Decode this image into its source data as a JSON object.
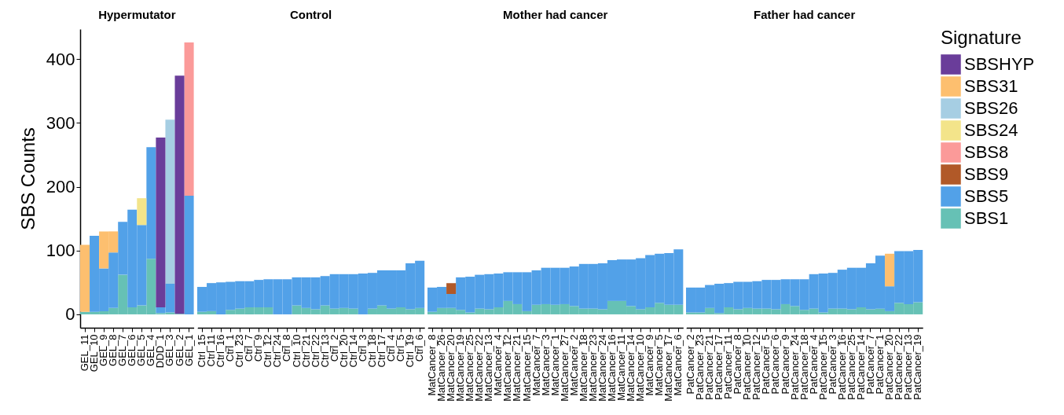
{
  "chart_data": [
    {
      "type": "bar",
      "title": "Hypermutator",
      "ylabel": "SBS Counts",
      "stacked": true,
      "legend": "right",
      "legend_title": "Signature",
      "ylim": [
        -21,
        447
      ],
      "yticks": [
        0,
        100,
        200,
        300,
        400
      ],
      "categories": [
        "GEL_11",
        "GEL_10",
        "GEL_9",
        "GEL_8",
        "GEL_7",
        "GEL_6",
        "GEL_5",
        "GEL_4",
        "DDD_1",
        "GEL_3",
        "GEL_2",
        "GEL_1"
      ],
      "series": [
        {
          "name": "SBS1",
          "color": "#66c1b5",
          "values": [
            4,
            4,
            5,
            10,
            62,
            11,
            14,
            87,
            2,
            3,
            1,
            0
          ]
        },
        {
          "name": "SBS5",
          "color": "#52a1e8",
          "values": [
            0,
            119,
            67,
            87,
            83,
            153,
            126,
            175,
            9,
            45,
            0,
            186
          ]
        },
        {
          "name": "SBS8",
          "color": "#fb9a99",
          "values": [
            0,
            0,
            0,
            0,
            0,
            0,
            0,
            0,
            0,
            0,
            0,
            240
          ]
        },
        {
          "name": "SBS24",
          "color": "#f3e48a",
          "values": [
            0,
            0,
            0,
            0,
            0,
            0,
            42,
            0,
            0,
            0,
            0,
            0
          ]
        },
        {
          "name": "SBS26",
          "color": "#a6cee3",
          "values": [
            0,
            0,
            0,
            0,
            0,
            0,
            0,
            0,
            0,
            257,
            0,
            0
          ]
        },
        {
          "name": "SBS31",
          "color": "#fdbf6f",
          "values": [
            105,
            0,
            58,
            33,
            0,
            0,
            0,
            0,
            0,
            0,
            0,
            0
          ]
        },
        {
          "name": "SBSHYP",
          "color": "#6a3d9a",
          "values": [
            0,
            0,
            0,
            0,
            0,
            0,
            0,
            0,
            266,
            0,
            373,
            0
          ]
        }
      ]
    },
    {
      "type": "bar",
      "title": "Control",
      "stacked": true,
      "ylim": [
        -21,
        447
      ],
      "tick_labels": "x",
      "categories": [
        "Ctrl_15",
        "Ctrl_11",
        "Ctrl_16",
        "Ctrl_1",
        "Ctrl_23",
        "Ctrl_7",
        "Ctrl_9",
        "Ctrl_12",
        "Ctrl_24",
        "Ctrl_8",
        "Ctrl_10",
        "Ctrl_21",
        "Ctrl_22",
        "Ctrl_13",
        "Ctrl_2",
        "Ctrl_20",
        "Ctrl_14",
        "Ctrl_3",
        "Ctrl_18",
        "Ctrl_17",
        "Ctrl_4",
        "Ctrl_5",
        "Ctrl_19",
        "Ctrl_6"
      ],
      "series": [
        {
          "name": "SBS1",
          "color": "#66c1b5",
          "values": [
            4,
            5,
            0,
            7,
            9,
            11,
            11,
            11,
            0,
            0,
            14,
            10,
            8,
            14,
            9,
            10,
            9,
            0,
            9,
            14,
            9,
            11,
            8,
            10
          ]
        },
        {
          "name": "SBS5",
          "color": "#52a1e8",
          "values": [
            39,
            44,
            50,
            44,
            43,
            41,
            43,
            44,
            55,
            55,
            44,
            48,
            50,
            46,
            54,
            53,
            54,
            64,
            56,
            55,
            60,
            58,
            72,
            74
          ]
        }
      ]
    },
    {
      "type": "bar",
      "title": "Mother had cancer",
      "stacked": true,
      "ylim": [
        -21,
        447
      ],
      "tick_labels": "x",
      "categories": [
        "MatCancer_8",
        "MatCancer_26",
        "MatCancer_20",
        "MatCancer_19",
        "MatCancer_25",
        "MatCancer_22",
        "MatCancer_13",
        "MatCancer_4",
        "MatCancer_12",
        "MatCancer_21",
        "MatCancer_15",
        "MatCancer_7",
        "MatCancer_3",
        "MatCancer_1",
        "MatCancer_27",
        "MatCancer_2",
        "MatCancer_18",
        "MatCancer_23",
        "MatCancer_24",
        "MatCancer_16",
        "MatCancer_11",
        "MatCancer_14",
        "MatCancer_10",
        "MatCancer_9",
        "MatCancer_5",
        "MatCancer_17",
        "MatCancer_6"
      ],
      "series": [
        {
          "name": "SBS1",
          "color": "#66c1b5",
          "values": [
            4,
            10,
            10,
            7,
            3,
            9,
            8,
            11,
            21,
            16,
            5,
            15,
            16,
            15,
            16,
            13,
            9,
            9,
            8,
            21,
            21,
            13,
            8,
            11,
            18,
            15,
            15
          ]
        },
        {
          "name": "SBS5",
          "color": "#52a1e8",
          "values": [
            38,
            33,
            22,
            51,
            56,
            53,
            55,
            53,
            45,
            50,
            61,
            54,
            57,
            58,
            57,
            62,
            70,
            70,
            72,
            64,
            65,
            73,
            80,
            82,
            77,
            81,
            87
          ]
        },
        {
          "name": "SBS9",
          "color": "#b15928",
          "values": [
            0,
            0,
            17,
            0,
            0,
            0,
            0,
            0,
            0,
            0,
            0,
            0,
            0,
            0,
            0,
            0,
            0,
            0,
            0,
            0,
            0,
            0,
            0,
            0,
            0,
            0,
            0
          ]
        }
      ]
    },
    {
      "type": "bar",
      "title": "Father had cancer",
      "stacked": true,
      "ylim": [
        -21,
        447
      ],
      "tick_labels": "x",
      "categories": [
        "PatCancer_2",
        "PatCancer_23",
        "PatCancer_21",
        "PatCancer_17",
        "PatCancer_11",
        "PatCancer_8",
        "PatCancer_10",
        "PatCancer_12",
        "PatCancer_5",
        "PatCancer_6",
        "PatCancer_9",
        "PatCancer_24",
        "PatCancer_18",
        "PatCancer_4",
        "PatCancer_15",
        "PatCancer_3",
        "PatCancer_16",
        "PatCancer_25",
        "PatCancer_14",
        "PatCancer_7",
        "PatCancer_1",
        "PatCancer_20",
        "PatCancer_22",
        "PatCancer_13",
        "PatCancer_19"
      ],
      "series": [
        {
          "name": "SBS1",
          "color": "#66c1b5",
          "values": [
            3,
            3,
            10,
            2,
            11,
            8,
            10,
            9,
            9,
            8,
            16,
            13,
            7,
            9,
            3,
            9,
            9,
            8,
            11,
            8,
            9,
            5,
            18,
            16,
            19
          ]
        },
        {
          "name": "SBS5",
          "color": "#52a1e8",
          "values": [
            39,
            39,
            36,
            46,
            38,
            43,
            41,
            43,
            45,
            46,
            39,
            42,
            48,
            54,
            61,
            56,
            61,
            65,
            62,
            72,
            83,
            39,
            81,
            83,
            82
          ]
        },
        {
          "name": "SBS31",
          "color": "#fdbf6f",
          "values": [
            0,
            0,
            0,
            0,
            0,
            0,
            0,
            0,
            0,
            0,
            0,
            0,
            0,
            0,
            0,
            0,
            0,
            0,
            0,
            0,
            0,
            51,
            0,
            0,
            0
          ]
        }
      ]
    }
  ]
}
